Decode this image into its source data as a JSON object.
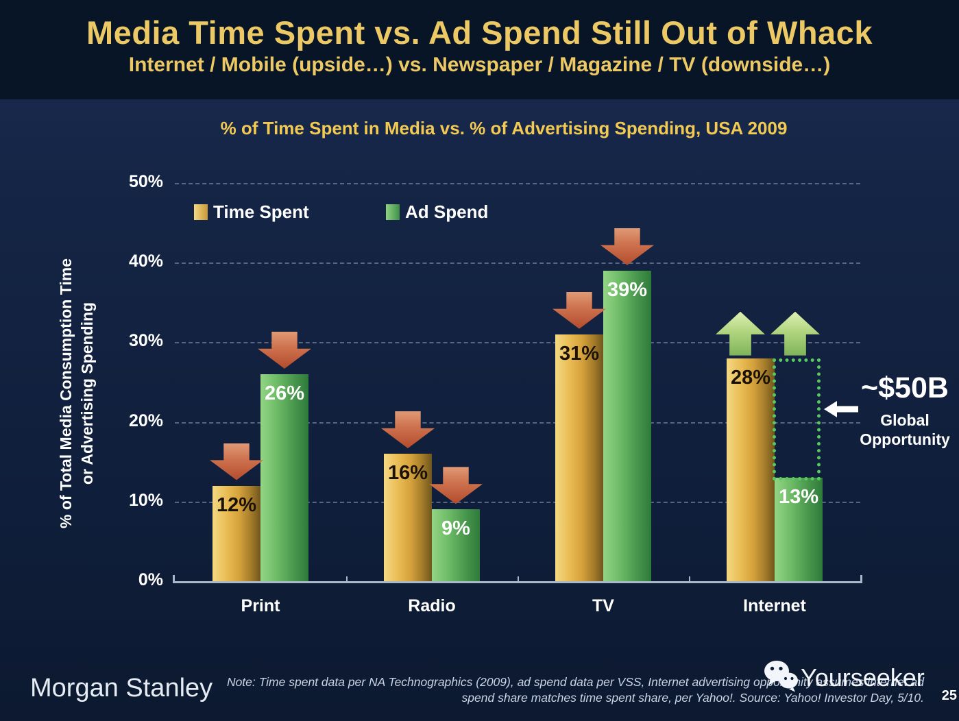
{
  "slide": {
    "title": "Media Time Spent vs. Ad Spend Still Out of Whack",
    "subtitle": "Internet / Mobile (upside…) vs. Newspaper / Magazine / TV (downside…)"
  },
  "chart_data": {
    "type": "bar",
    "title": "% of Time Spent in Media vs. % of Advertising Spending, USA 2009",
    "ylabel_line1": "% of Total Media Consumption Time",
    "ylabel_line2": "or Advertising Spending",
    "categories": [
      "Print",
      "Radio",
      "TV",
      "Internet"
    ],
    "series": [
      {
        "name": "Time Spent",
        "color": "#d6a23c",
        "values": [
          12,
          16,
          31,
          28
        ]
      },
      {
        "name": "Ad Spend",
        "color": "#4d9c50",
        "values": [
          26,
          9,
          39,
          13
        ]
      }
    ],
    "value_labels": [
      [
        "12%",
        "26%"
      ],
      [
        "16%",
        "9%"
      ],
      [
        "31%",
        "39%"
      ],
      [
        "28%",
        "13%"
      ]
    ],
    "trend_arrows": [
      [
        "down",
        "down"
      ],
      [
        "down",
        "down"
      ],
      [
        "down",
        "down"
      ],
      [
        "up",
        "up"
      ]
    ],
    "yticks": [
      "0%",
      "10%",
      "20%",
      "30%",
      "40%",
      "50%"
    ],
    "ylim": [
      0,
      50
    ],
    "grid": "dashed-horizontal",
    "legend_position": "top-left-inside",
    "opportunity": {
      "category": "Internet",
      "gap_between": [
        "Time Spent",
        "Ad Spend"
      ]
    }
  },
  "annotation": {
    "value": "~$50B",
    "label_line1": "Global",
    "label_line2": "Opportunity",
    "arrow_direction": "left"
  },
  "footer": {
    "brand": "Morgan Stanley",
    "note_line1": "Note: Time spent data per NA Technographics (2009), ad spend data per VSS, Internet advertising opportunity assumes internet ad",
    "note_line2": "spend share matches time spent share, per Yahoo!. Source: Yahoo! Investor Day, 5/10.",
    "watermark": "Yourseeker",
    "page_number": "25"
  },
  "colors": {
    "header_bg": "#081527",
    "body_bg": "#0f1e3a",
    "title_gold": "#ecc964",
    "chart_title_gold": "#f2ca52",
    "bar_gold": "#d6a23c",
    "bar_green": "#4d9c50",
    "arrow_down_red": "#b34c2c",
    "arrow_up_green": "#9cc56f",
    "opportunity_dotted_green": "#58c95e",
    "axis": "#a9b8cb"
  }
}
